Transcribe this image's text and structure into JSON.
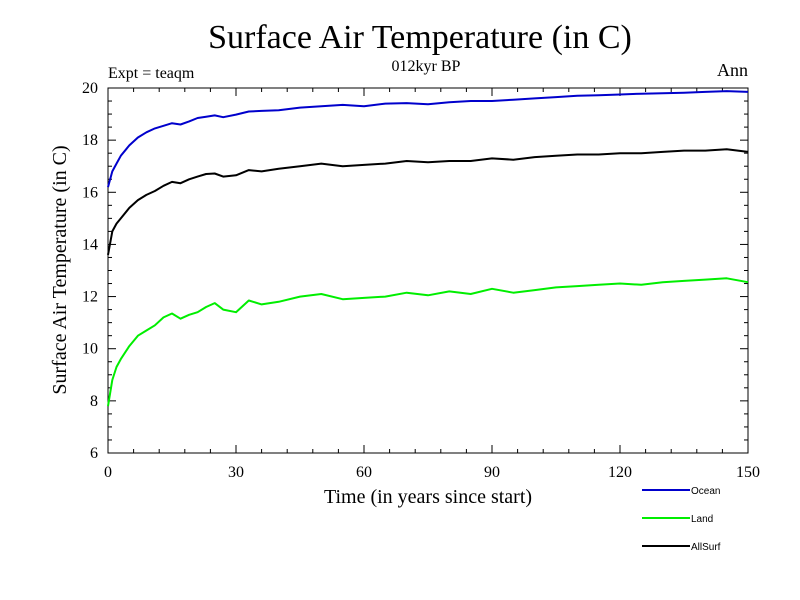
{
  "chart_data": {
    "type": "line",
    "title": "Surface Air Temperature (in C)",
    "subtitle": "012kyr BP",
    "left_label": "Expt = teaqm",
    "right_label": "Ann",
    "xlabel": "Time (in years since start)",
    "ylabel": "Surface Air Temperature (in C)",
    "xlim": [
      0,
      150
    ],
    "ylim": [
      6,
      20
    ],
    "xticks": [
      0,
      30,
      60,
      90,
      120,
      150
    ],
    "yticks": [
      6,
      8,
      10,
      12,
      14,
      16,
      18,
      20
    ],
    "xtick_labels": [
      "0",
      "30",
      "60",
      "90",
      "120",
      "150"
    ],
    "ytick_labels": [
      "6",
      "8",
      "10",
      "12",
      "14",
      "16",
      "18",
      "20"
    ],
    "grid": false,
    "legend_position": "bottom-right",
    "series": [
      {
        "name": "Ocean",
        "color": "#0000cc",
        "x": [
          0,
          1,
          2,
          3,
          5,
          7,
          9,
          11,
          13,
          15,
          17,
          19,
          21,
          23,
          25,
          27,
          30,
          33,
          36,
          40,
          45,
          50,
          55,
          60,
          65,
          70,
          75,
          80,
          85,
          90,
          95,
          100,
          105,
          110,
          115,
          120,
          125,
          130,
          135,
          140,
          145,
          150
        ],
        "values": [
          16.2,
          16.8,
          17.1,
          17.4,
          17.8,
          18.1,
          18.3,
          18.45,
          18.55,
          18.65,
          18.6,
          18.72,
          18.85,
          18.9,
          18.95,
          18.88,
          18.98,
          19.1,
          19.12,
          19.15,
          19.25,
          19.3,
          19.35,
          19.3,
          19.4,
          19.42,
          19.38,
          19.45,
          19.5,
          19.5,
          19.55,
          19.6,
          19.65,
          19.7,
          19.72,
          19.75,
          19.78,
          19.8,
          19.82,
          19.85,
          19.88,
          19.85
        ]
      },
      {
        "name": "Land",
        "color": "#00ee00",
        "x": [
          0,
          1,
          2,
          3,
          5,
          7,
          9,
          11,
          13,
          15,
          17,
          19,
          21,
          23,
          25,
          27,
          30,
          33,
          36,
          40,
          45,
          50,
          55,
          60,
          65,
          70,
          75,
          80,
          85,
          90,
          95,
          100,
          105,
          110,
          115,
          120,
          125,
          130,
          135,
          140,
          145,
          150
        ],
        "values": [
          7.8,
          8.8,
          9.3,
          9.6,
          10.1,
          10.5,
          10.7,
          10.9,
          11.2,
          11.35,
          11.15,
          11.3,
          11.4,
          11.6,
          11.75,
          11.5,
          11.4,
          11.85,
          11.7,
          11.8,
          12.0,
          12.1,
          11.9,
          11.95,
          12.0,
          12.15,
          12.05,
          12.2,
          12.1,
          12.3,
          12.15,
          12.25,
          12.35,
          12.4,
          12.45,
          12.5,
          12.45,
          12.55,
          12.6,
          12.65,
          12.7,
          12.55
        ]
      },
      {
        "name": "AllSurf",
        "color": "#000000",
        "x": [
          0,
          1,
          2,
          3,
          5,
          7,
          9,
          11,
          13,
          15,
          17,
          19,
          21,
          23,
          25,
          27,
          30,
          33,
          36,
          40,
          45,
          50,
          55,
          60,
          65,
          70,
          75,
          80,
          85,
          90,
          95,
          100,
          105,
          110,
          115,
          120,
          125,
          130,
          135,
          140,
          145,
          150
        ],
        "values": [
          13.6,
          14.5,
          14.8,
          15.0,
          15.4,
          15.7,
          15.9,
          16.05,
          16.25,
          16.4,
          16.35,
          16.5,
          16.6,
          16.7,
          16.72,
          16.6,
          16.65,
          16.85,
          16.8,
          16.9,
          17.0,
          17.1,
          17.0,
          17.05,
          17.1,
          17.2,
          17.15,
          17.2,
          17.2,
          17.3,
          17.25,
          17.35,
          17.4,
          17.45,
          17.45,
          17.5,
          17.5,
          17.55,
          17.6,
          17.6,
          17.65,
          17.55
        ]
      }
    ]
  }
}
